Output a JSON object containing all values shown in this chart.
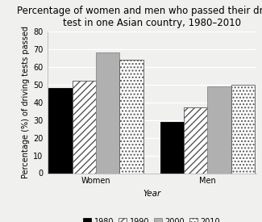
{
  "title": "Percentage of women and men who passed their driving\ntest in one Asian country, 1980–2010",
  "xlabel": "Year",
  "ylabel": "Percentage (%) of driving tests passed",
  "ylim": [
    0,
    80
  ],
  "yticks": [
    0,
    10,
    20,
    30,
    40,
    50,
    60,
    70,
    80
  ],
  "groups": [
    "Women",
    "Men"
  ],
  "years": [
    "1980",
    "1990",
    "2000",
    "2010"
  ],
  "values": {
    "Women": [
      48,
      52,
      68,
      64
    ],
    "Men": [
      29,
      37,
      49,
      50
    ]
  },
  "bar_facecolors": [
    "#000000",
    "#ffffff",
    "#b0b0b0",
    "#ffffff"
  ],
  "bar_edgecolors": [
    "#000000",
    "#555555",
    "#888888",
    "#555555"
  ],
  "hatches": [
    "",
    "////",
    "",
    "...."
  ],
  "background_color": "#f0f0ee",
  "grid_color": "#ffffff",
  "title_fontsize": 8.5,
  "axis_label_fontsize": 7.5,
  "tick_fontsize": 7,
  "legend_fontsize": 7,
  "bar_width": 0.17,
  "group_positions": [
    0.35,
    1.15
  ]
}
